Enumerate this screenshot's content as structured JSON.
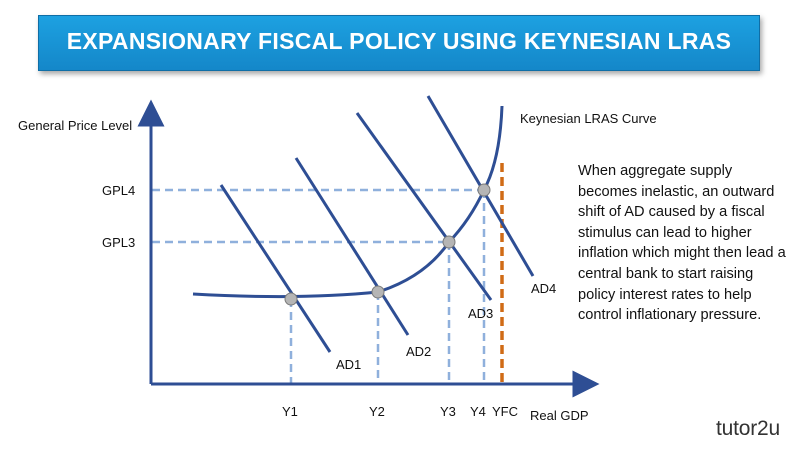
{
  "title": "EXPANSIONARY FISCAL POLICY USING KEYNESIAN LRAS",
  "diagram": {
    "y_axis_label": "General Price Level",
    "x_axis_label": "Real GDP",
    "curve_label": "Keynesian LRAS Curve",
    "price_levels": [
      "GPL4",
      "GPL3"
    ],
    "output_levels": [
      "Y1",
      "Y2",
      "Y3",
      "Y4",
      "YFC"
    ],
    "ad_curves": [
      "AD1",
      "AD2",
      "AD3",
      "AD4"
    ],
    "colors": {
      "axis_and_curves": "#2e4e94",
      "guides": "#8fb0dc",
      "full_capacity_line": "#d06b16",
      "banner": "#1a97d8"
    }
  },
  "explanation": "When aggregate supply becomes inelastic, an outward shift of AD caused by a fiscal stimulus can lead to higher inflation which might then lead a central bank to start raising policy interest rates to help control inflationary pressure.",
  "brand": "tutor2u"
}
